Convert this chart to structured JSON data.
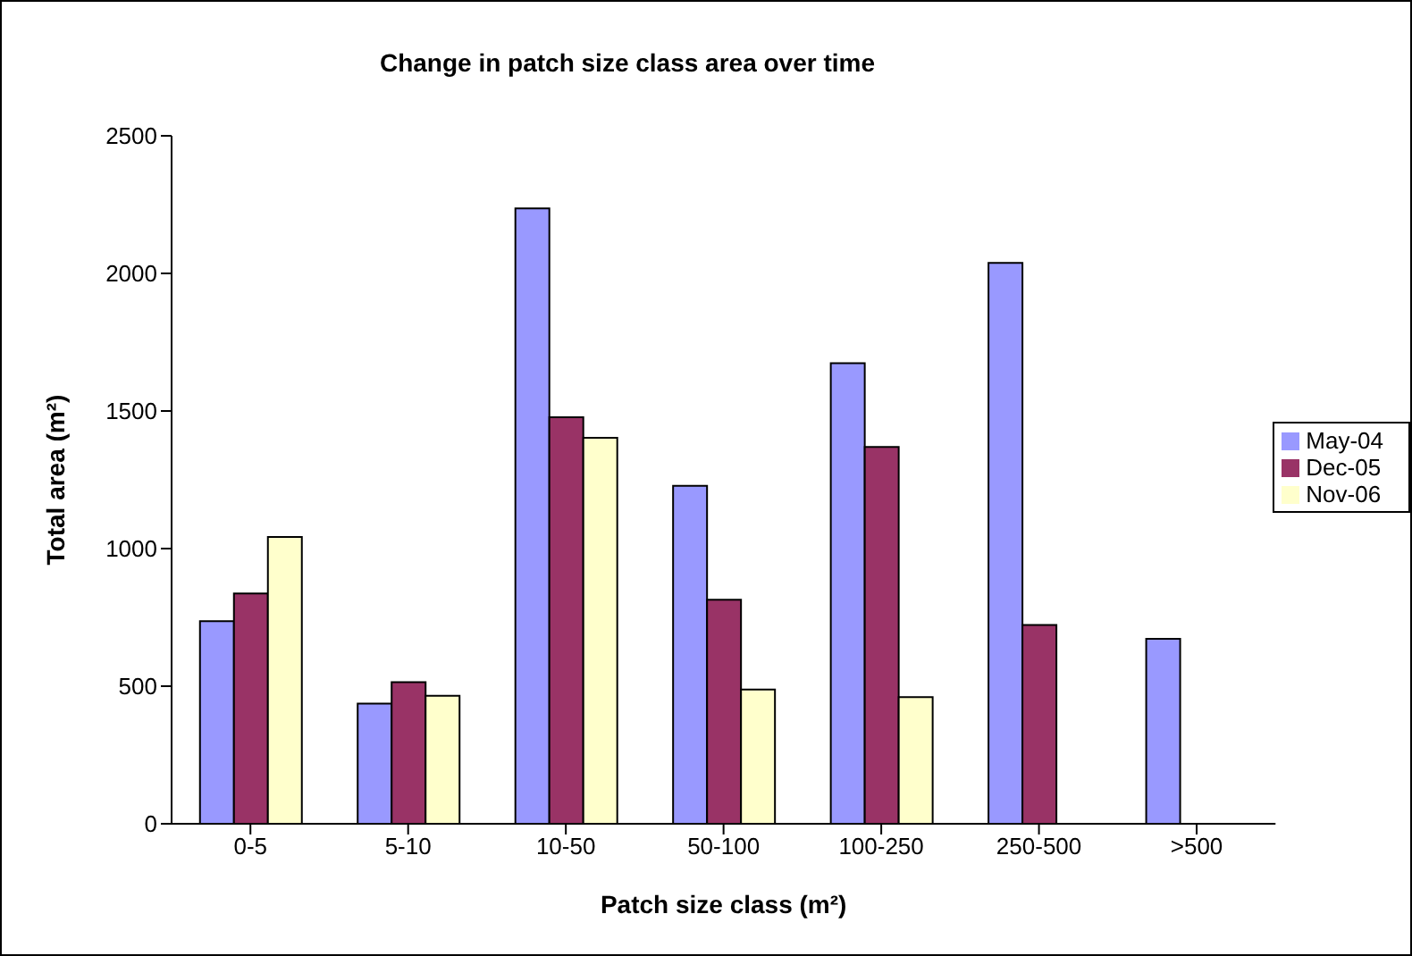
{
  "chart_data": {
    "type": "bar",
    "title": "Change in patch size class area over time",
    "xlabel": "Patch size class (m²)",
    "ylabel": "Total area (m²)",
    "categories": [
      "0-5",
      "5-10",
      "10-50",
      "50-100",
      "100-250",
      "250-500",
      ">500"
    ],
    "series": [
      {
        "name": "May-04",
        "color": "#9999ff",
        "values": [
          736,
          437,
          2236,
          1228,
          1674,
          2038,
          672
        ]
      },
      {
        "name": "Dec-05",
        "color": "#993366",
        "values": [
          837,
          515,
          1477,
          814,
          1369,
          722,
          null
        ]
      },
      {
        "name": "Nov-06",
        "color": "#ffffcc",
        "values": [
          1042,
          465,
          1403,
          488,
          460,
          null,
          null
        ]
      }
    ],
    "ylim": [
      0,
      2500
    ],
    "yticks": [
      0,
      500,
      1000,
      1500,
      2000,
      2500
    ],
    "grid": false,
    "legend": "right"
  }
}
